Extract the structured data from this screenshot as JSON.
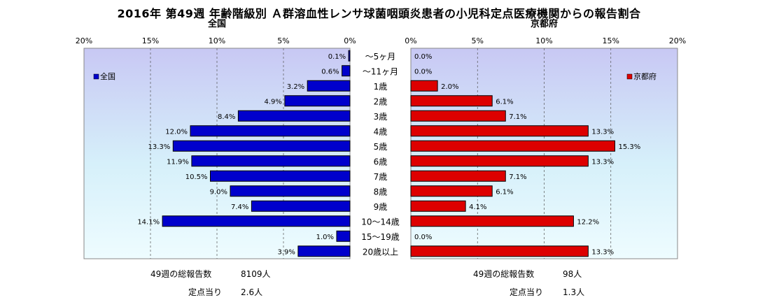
{
  "title": "2016年 第49週 年齢階級別 Ａ群溶血性レンサ球菌咽頭炎患者の小児科定点医療機関からの報告割合",
  "chart_data": {
    "type": "bar",
    "categories": [
      "～5ヶ月",
      "～11ヶ月",
      "1歳",
      "2歳",
      "3歳",
      "4歳",
      "5歳",
      "6歳",
      "7歳",
      "8歳",
      "9歳",
      "10～14歳",
      "15～19歳",
      "20歳以上"
    ],
    "xlim": [
      0,
      20
    ],
    "tick_labels": [
      "0%",
      "5%",
      "10%",
      "15%",
      "20%"
    ],
    "grid": true,
    "series": [
      {
        "name": "全国",
        "panel_title": "全国",
        "legend": "全国",
        "legend_position": "top-left",
        "color": "#0000cc",
        "values": [
          0.1,
          0.6,
          3.2,
          4.9,
          8.4,
          12.0,
          13.3,
          11.9,
          10.5,
          9.0,
          7.4,
          14.1,
          1.0,
          3.9
        ],
        "labels": [
          "0.1%",
          "0.6%",
          "3.2%",
          "4.9%",
          "8.4%",
          "12.0%",
          "13.3%",
          "11.9%",
          "10.5%",
          "9.0%",
          "7.4%",
          "14.1%",
          "1.0%",
          "3.9%"
        ]
      },
      {
        "name": "京都府",
        "panel_title": "京都府",
        "legend": "京都府",
        "legend_position": "top-right",
        "color": "#dd0000",
        "values": [
          0.0,
          0.0,
          2.0,
          6.1,
          7.1,
          13.3,
          15.3,
          13.3,
          7.1,
          6.1,
          4.1,
          12.2,
          0.0,
          13.3
        ],
        "labels": [
          "0.0%",
          "0.0%",
          "2.0%",
          "6.1%",
          "7.1%",
          "13.3%",
          "15.3%",
          "13.3%",
          "7.1%",
          "6.1%",
          "4.1%",
          "12.2%",
          "0.0%",
          "13.3%"
        ]
      }
    ]
  },
  "stats": {
    "national": {
      "total_label": "49週の総報告数",
      "total_value": "8109人",
      "per_label": "定点当り",
      "per_value": "2.6人"
    },
    "kyoto": {
      "total_label": "49週の総報告数",
      "total_value": "98人",
      "per_label": "定点当り",
      "per_value": "1.3人"
    }
  }
}
